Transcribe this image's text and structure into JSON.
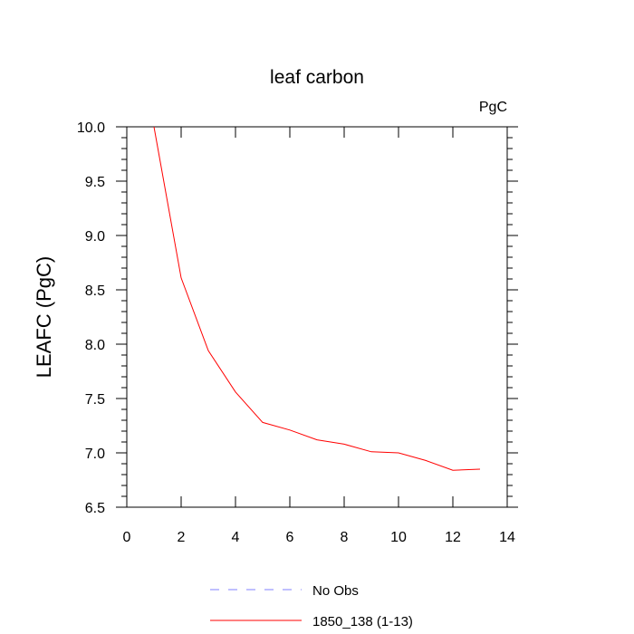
{
  "chart_data": {
    "type": "line",
    "title": "leaf carbon",
    "units": "PgC",
    "ylabel": "LEAFC  (PgC)",
    "xlabel": "",
    "xlim": [
      0,
      14
    ],
    "ylim": [
      6.5,
      10.0
    ],
    "xticks": [
      0,
      2,
      4,
      6,
      8,
      10,
      12,
      14
    ],
    "yticks": [
      6.5,
      7.0,
      7.5,
      8.0,
      8.5,
      9.0,
      9.5,
      10.0
    ],
    "ytick_labels": [
      "6.5",
      "7.0",
      "7.5",
      "8.0",
      "8.5",
      "9.0",
      "9.5",
      "10.0"
    ],
    "grid": false,
    "legend_position": "bottom-center",
    "series": [
      {
        "name": "No Obs",
        "color": "#8080ff",
        "dash": "dashed",
        "x": [],
        "y": []
      },
      {
        "name": "1850_138 (1-13)",
        "color": "#ff0000",
        "dash": "solid",
        "x": [
          1,
          2,
          3,
          4,
          5,
          6,
          7,
          8,
          9,
          10,
          11,
          12,
          13
        ],
        "y": [
          10.0,
          8.61,
          7.94,
          7.56,
          7.28,
          7.21,
          7.12,
          7.08,
          7.01,
          7.0,
          6.93,
          6.84,
          6.85
        ]
      }
    ]
  }
}
